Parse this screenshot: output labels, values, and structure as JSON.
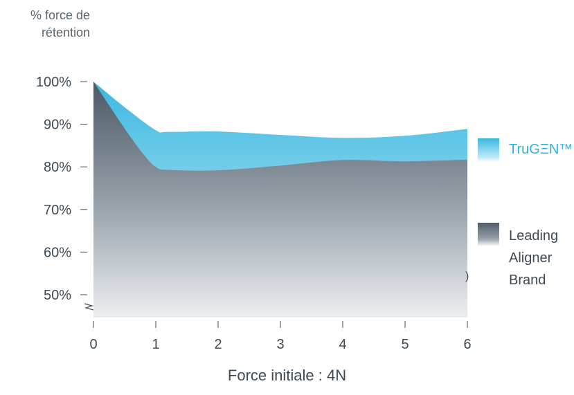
{
  "chart_data": {
    "type": "area",
    "ylabel_lines": [
      "% force de",
      "rétention"
    ],
    "xlabel": "Force initiale : 4N",
    "x_ticks": [
      "0",
      "1",
      "2",
      "3",
      "4",
      "5",
      "6"
    ],
    "y_ticks": [
      "100%",
      "90%",
      "80%",
      "70%",
      "60%",
      "50%"
    ],
    "y_tick_values": [
      100,
      90,
      80,
      70,
      60,
      50
    ],
    "xlim": [
      0,
      6
    ],
    "ylim": [
      45,
      100
    ],
    "y_axis_break": true,
    "grid": false,
    "legend_position": "right",
    "series": [
      {
        "name": "TruGEN™",
        "color": "#3bb8e0",
        "x": [
          0,
          0.5,
          1.0,
          1.2,
          2.0,
          3.0,
          4.0,
          5.0,
          6.0
        ],
        "values": [
          100,
          94,
          88.6,
          88.2,
          88.3,
          87.5,
          86.8,
          87.3,
          88.9
        ]
      },
      {
        "name": "Leading Aligner Brand",
        "color": "#4f5d68",
        "x": [
          0,
          0.5,
          0.8,
          1.0,
          1.2,
          2.0,
          3.0,
          4.0,
          5.0,
          6.0
        ],
        "values": [
          100,
          89,
          83,
          80,
          79.3,
          79.2,
          80.3,
          81.6,
          81.3,
          81.7
        ]
      }
    ]
  },
  "legend": {
    "trugen_label": "TruGΞN™",
    "leading_label": "Leading Aligner Brand"
  },
  "stray_mark": ")"
}
